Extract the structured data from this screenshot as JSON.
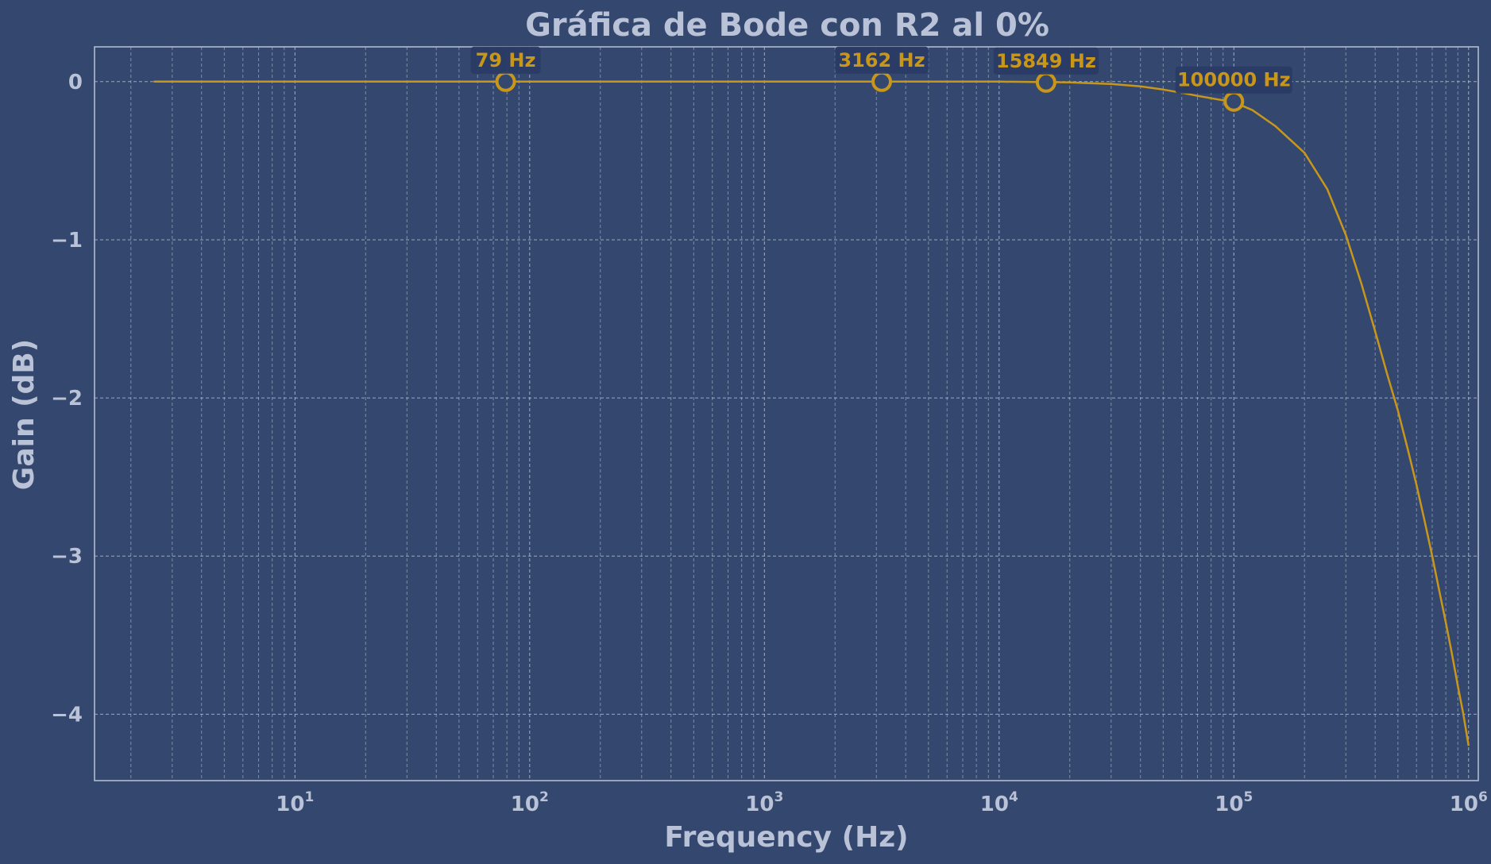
{
  "colors": {
    "background": "#34476f",
    "plot_border": "#b9c2d6",
    "grid": "#c8d0e0",
    "text": "#b9c2d6",
    "curve": "#c8971a",
    "annotation_box": "#2a3c64"
  },
  "chart_data": {
    "type": "line",
    "title": "Gráfica de Bode con R2 al 0%",
    "xlabel": "Frequency (Hz)",
    "ylabel": "Gain (dB)",
    "xscale": "log",
    "xlim": [
      1.4,
      1100000
    ],
    "ylim": [
      -4.42,
      0.22
    ],
    "grid": true,
    "x_ticks": [
      {
        "value": 10,
        "base": "10",
        "exp": "1"
      },
      {
        "value": 100,
        "base": "10",
        "exp": "2"
      },
      {
        "value": 1000,
        "base": "10",
        "exp": "3"
      },
      {
        "value": 10000,
        "base": "10",
        "exp": "4"
      },
      {
        "value": 100000,
        "base": "10",
        "exp": "5"
      },
      {
        "value": 1000000,
        "base": "10",
        "exp": "6"
      }
    ],
    "y_ticks": [
      {
        "value": 0,
        "label": "0"
      },
      {
        "value": -1,
        "label": "−1"
      },
      {
        "value": -2,
        "label": "−2"
      },
      {
        "value": -3,
        "label": "−3"
      },
      {
        "value": -4,
        "label": "−4"
      }
    ],
    "series": [
      {
        "x": [
          2.5,
          10,
          100,
          1000,
          10000,
          20000,
          30000,
          40000,
          50000,
          60000,
          70000,
          80000,
          100000,
          120000,
          150000,
          200000,
          250000,
          300000,
          350000,
          400000,
          450000,
          500000,
          550000,
          600000,
          650000,
          700000,
          750000,
          800000,
          850000,
          900000,
          950000,
          1000000
        ],
        "y": [
          0,
          0,
          0,
          0,
          0,
          -0.005,
          -0.015,
          -0.03,
          -0.05,
          -0.07,
          -0.09,
          -0.105,
          -0.13,
          -0.18,
          -0.28,
          -0.45,
          -0.68,
          -0.97,
          -1.28,
          -1.58,
          -1.85,
          -2.08,
          -2.32,
          -2.55,
          -2.78,
          -3.0,
          -3.22,
          -3.42,
          -3.62,
          -3.82,
          -4.0,
          -4.2
        ]
      }
    ],
    "markers": [
      {
        "x": 79,
        "y": 0,
        "label": "79 Hz"
      },
      {
        "x": 3162,
        "y": 0,
        "label": "3162 Hz"
      },
      {
        "x": 15849,
        "y": -0.005,
        "label": "15849 Hz"
      },
      {
        "x": 100000,
        "y": -0.125,
        "label": "100000 Hz"
      }
    ]
  }
}
